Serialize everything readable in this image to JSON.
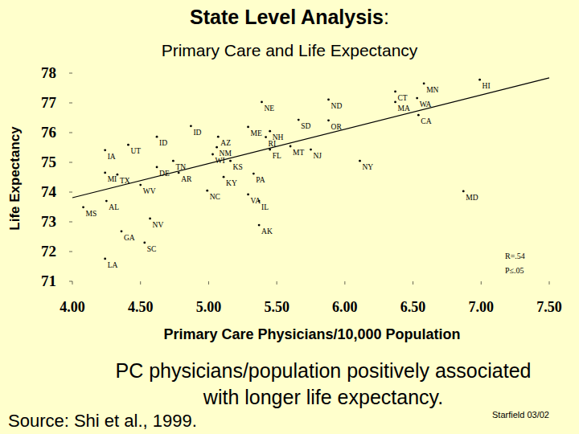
{
  "chart_data": {
    "type": "scatter",
    "title": "State Level Analysis:",
    "subtitle": "Primary Care and Life Expectancy",
    "x_label": "Primary Care Physicians/10,000 Population",
    "y_label": "Life Expectancy",
    "point_labels": [
      "HI",
      "MN",
      "CT",
      "WA",
      "MA",
      "CA",
      "ND",
      "OR",
      "NE",
      "SD",
      "ME",
      "NH",
      "RI",
      "MT",
      "FL",
      "NJ",
      "NY",
      "AZ",
      "NM",
      "ID",
      "ID",
      "IA",
      "UT",
      "TN",
      "WI",
      "KS",
      "PA",
      "KY",
      "MI",
      "TX",
      "WV",
      "DE",
      "AR",
      "NC",
      "VA",
      "IL",
      "AL",
      "MS",
      "NV",
      "GA",
      "AK",
      "SC",
      "LA",
      "MD"
    ],
    "x": [
      6.99,
      6.58,
      6.37,
      6.53,
      6.37,
      6.54,
      5.88,
      5.88,
      5.39,
      5.66,
      5.29,
      5.45,
      5.42,
      5.6,
      5.45,
      5.75,
      6.11,
      5.07,
      5.06,
      4.87,
      4.62,
      4.24,
      4.41,
      4.74,
      5.03,
      5.16,
      5.33,
      5.11,
      4.24,
      4.33,
      4.5,
      4.62,
      4.78,
      4.99,
      5.29,
      5.37,
      4.25,
      4.08,
      4.57,
      4.36,
      5.37,
      4.53,
      4.24,
      6.87
    ],
    "values": [
      77.78,
      77.65,
      77.38,
      77.16,
      77.03,
      76.59,
      77.11,
      76.41,
      77.03,
      76.43,
      76.19,
      76.05,
      75.85,
      75.54,
      75.43,
      75.43,
      75.05,
      75.86,
      75.51,
      76.22,
      75.86,
      75.41,
      75.59,
      75.05,
      75.27,
      75.05,
      74.62,
      74.51,
      74.65,
      74.59,
      74.24,
      74.84,
      74.65,
      74.05,
      73.92,
      73.7,
      73.7,
      73.49,
      73.11,
      72.68,
      72.89,
      72.3,
      71.76,
      74.03
    ],
    "color": "#000000",
    "trend_line": {
      "x": [
        4,
        7.5
      ],
      "y": [
        73.81,
        77.84
      ],
      "color": "#000000"
    },
    "xlim": [
      4,
      7.5
    ],
    "xticks": [
      {
        "value": 4,
        "label": "4.00"
      },
      {
        "value": 4.5,
        "label": "4.50"
      },
      {
        "value": 5,
        "label": "5.00"
      },
      {
        "value": 5.5,
        "label": "5.50"
      },
      {
        "value": 6,
        "label": "6.00"
      },
      {
        "value": 6.5,
        "label": "6.50"
      },
      {
        "value": 7,
        "label": "7.00"
      },
      {
        "value": 7.5,
        "label": "7.50"
      }
    ],
    "ylim": [
      71,
      78
    ],
    "yticks": [
      71,
      72,
      73,
      74,
      75,
      76,
      77,
      78
    ],
    "grid": false,
    "annotations": [
      "R=.54",
      "P≤.05"
    ],
    "caption": [
      "PC physicians/population positively associated",
      "with longer life expectancy."
    ],
    "source": "Source: Shi et al., 1999.",
    "credit": "Starfield 03/02"
  }
}
